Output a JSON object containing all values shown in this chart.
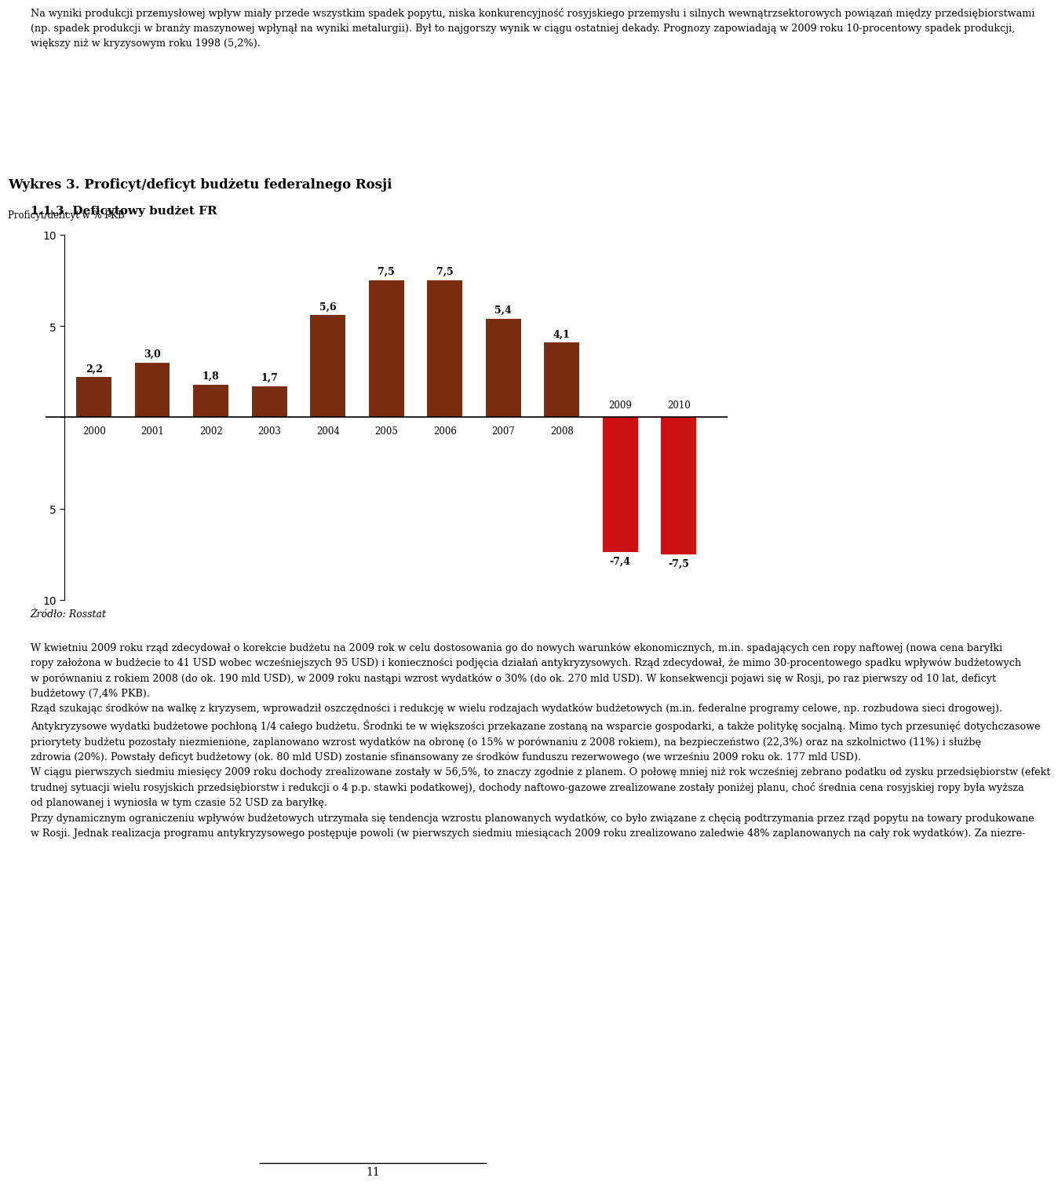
{
  "title": "Wykres 3. Proficyt/deficyt budżetu federalnego Rosji",
  "ylabel": "Proficyt/deficyt w % PKB",
  "source": "Żródło: Rosstat",
  "paragraph1_lines": [
    "Na wyniki produkcji przemysłowej wpływ miały przede wszystkim spadek popytu, niska konkurencyjność rosyjskiego przemysłu i silnych wewnątrzsektorowych powiązań między przedsiębiorstwami",
    "(np. spadek produkcji w branży maszynowej wpłynął na wyniki metalurgii). Był to najgorszy wynik w ciągu ostatniej dekady. Prognozy zapowiadają w 2009 roku 10-procentowy spadek produkcji,",
    "większy niż w kryzysowym roku 1998 (5,2%)."
  ],
  "heading": "1.1.3. Deficytowy budżet FR",
  "body_lines": [
    "W kwietniu 2009 roku rząd zdecydował o korekcie budżetu na 2009 rok w celu dostosowania go do nowych warunków ekonomicznych, m.in. spadających cen ropy naftowej (nowa cena baryłki",
    "ropy założona w budżecie to 41 USD wobec wcześniejszych 95 USD) i konieczności podjęcia działań antykryzysowych. Rząd zdecydował, że mimo 30-procentowego spadku wpływów budżetowych",
    "w porównaniu z rokiem 2008 (do ok. 190 mld USD), w 2009 roku nastąpi wzrost wydatków o 30% (do ok. 270 mld USD). W konsekwencji pojawi się w Rosji, po raz pierwszy od 10 lat, deficyt",
    "budżetowy (7,4% PKB).",
    "Rząd szukając środków na walkę z kryzysem, wprowadził oszczędności i redukcję w wielu rodzajach wydatków budżetowych (m.in. federalne programy celowe, np. rozbudowa sieci drogowej).",
    "Antykryzysowe wydatki budżetowe pochłoną 1/4 całego budżetu. Środnki te w większości przekazane zostaną na wsparcie gospodarki, a także politykę socjalną. Mimo tych przesunięć dotychczasowe",
    "priorytety budżetu pozostały niezmienione, zaplanowano wzrost wydatków na obronę (o 15% w porównaniu z 2008 rokiem), na bezpieczeństwo (22,3%) oraz na szkolnictwo (11%) i służbę",
    "zdrowia (20%). Powstały deficyt budżetowy (ok. 80 mld USD) zostanie sfinansowany ze środków funduszu rezerwowego (we wrześniu 2009 roku ok. 177 mld USD).",
    "W ciągu pierwszych siedmiu miesięcy 2009 roku dochody zrealizowane zostały w 56,5%, to znaczy zgodnie z planem. O połowę mniej niż rok wcześniej zebrano podatku od zysku przedsiębiorstw (efekt",
    "trudnej sytuacji wielu rosyjskich przedsiębiorstw i redukcji o 4 p.p. stawki podatkowej), dochody naftowo-gazowe zrealizowane zostały poniżej planu, choć średnia cena rosyjskiej ropy była wyższa",
    "od planowanej i wyniosła w tym czasie 52 USD za baryłkę.",
    "Przy dynamicznym ograniczeniu wpływów budżetowych utrzymała się tendencja wzrostu planowanych wydatków, co było związane z chęcią podtrzymania przez rząd popytu na towary produkowane",
    "w Rosji. Jednak realizacja programu antykryzysowego postępuje powoli (w pierwszych siedmiu miesiącach 2009 roku zrealizowano zaledwie 48% zaplanowanych na cały rok wydatków). Za niezre-"
  ],
  "page_number": "11",
  "years": [
    2000,
    2001,
    2002,
    2003,
    2004,
    2005,
    2006,
    2007,
    2008,
    2009,
    2010
  ],
  "values": [
    2.2,
    3.0,
    1.8,
    1.7,
    5.6,
    7.5,
    7.5,
    5.4,
    4.1,
    -7.4,
    -7.5
  ],
  "bar_colors": [
    "#7B2D12",
    "#7B2D12",
    "#7B2D12",
    "#7B2D12",
    "#7B2D12",
    "#7B2D12",
    "#7B2D12",
    "#7B2D12",
    "#7B2D12",
    "#CC1111",
    "#CC1111"
  ],
  "ylim": [
    -10,
    10
  ],
  "yticks": [
    -10,
    -5,
    0,
    5,
    10
  ],
  "background_color": "#FFFFFF",
  "title_fontsize": 12,
  "label_fontsize": 8.5,
  "bar_label_fontsize": 9,
  "axis_fontsize": 8.5,
  "source_fontsize": 9,
  "body_fontsize": 9.2,
  "heading_fontsize": 11
}
